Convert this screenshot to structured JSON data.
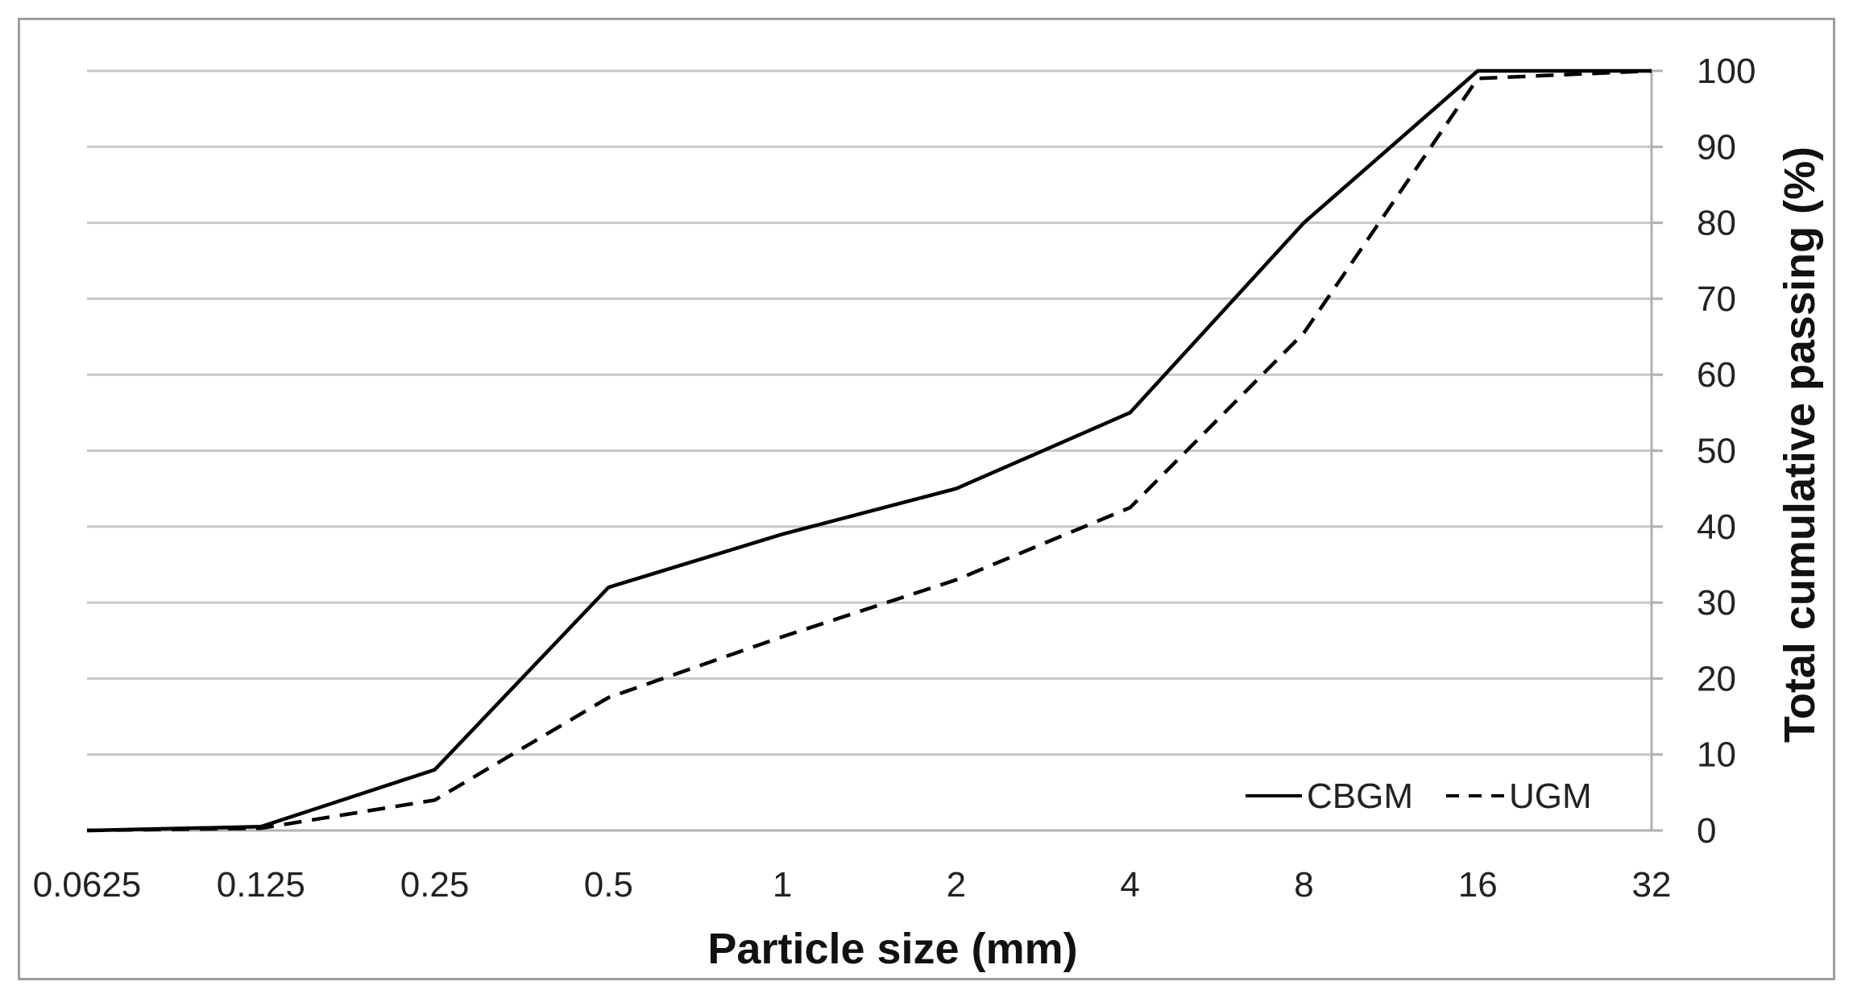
{
  "chart_data": {
    "type": "line",
    "xlabel": "Particle size (mm)",
    "ylabel": "Total cumulative passing (%)",
    "x_scale": "log2",
    "x_ticks": [
      "0.0625",
      "0.125",
      "0.25",
      "0.5",
      "1",
      "2",
      "4",
      "8",
      "16",
      "32"
    ],
    "x": [
      0.0625,
      0.125,
      0.25,
      0.5,
      1,
      2,
      4,
      8,
      16,
      32
    ],
    "y_ticks": [
      "0",
      "10",
      "20",
      "30",
      "40",
      "50",
      "60",
      "70",
      "80",
      "90",
      "100"
    ],
    "ylim": [
      0,
      100
    ],
    "y_axis_side": "right",
    "grid": "horizontal",
    "legend_position": "bottom-right",
    "series": [
      {
        "name": "CBGM",
        "style": "solid",
        "color": "#000000",
        "values": [
          0,
          0.5,
          8,
          32,
          39,
          45,
          55,
          80,
          100,
          100
        ]
      },
      {
        "name": "UGM",
        "style": "dashed",
        "color": "#000000",
        "values": [
          0,
          0.3,
          4,
          17.5,
          25.5,
          33,
          42.5,
          65.5,
          99,
          100
        ]
      }
    ]
  }
}
